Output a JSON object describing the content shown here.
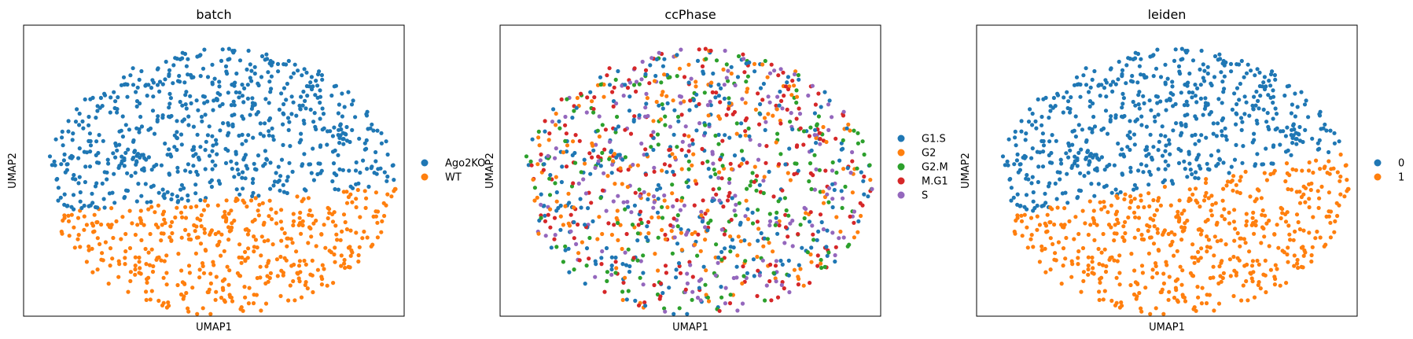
{
  "figure": {
    "background": "#ffffff"
  },
  "chart_data": [
    {
      "type": "scatter",
      "title": "batch",
      "xlabel": "UMAP1",
      "ylabel": "UMAP2",
      "xticks": [],
      "yticks": [],
      "grid": false,
      "legend_placement": "right",
      "categories": [
        {
          "name": "Ago2KO",
          "color": "#1f77b4"
        },
        {
          "name": "WT",
          "color": "#ff7f0e"
        }
      ],
      "points_description": "UMAP embedding, ~1200 cells; Ago2KO in upper half, WT in lower half",
      "seed": 11
    },
    {
      "type": "scatter",
      "title": "ccPhase",
      "xlabel": "UMAP1",
      "ylabel": "UMAP2",
      "xticks": [],
      "yticks": [],
      "grid": false,
      "legend_placement": "right",
      "categories": [
        {
          "name": "G1.S",
          "color": "#1f77b4"
        },
        {
          "name": "G2",
          "color": "#ff7f0e"
        },
        {
          "name": "G2.M",
          "color": "#2ca02c"
        },
        {
          "name": "M.G1",
          "color": "#d62728"
        },
        {
          "name": "S",
          "color": "#9467bd"
        }
      ],
      "points_description": "Same embedding; phases intermixed throughout",
      "seed": 23
    },
    {
      "type": "scatter",
      "title": "leiden",
      "xlabel": "UMAP1",
      "ylabel": "UMAP2",
      "xticks": [],
      "yticks": [],
      "grid": false,
      "legend_placement": "right",
      "categories": [
        {
          "name": "0",
          "color": "#1f77b4"
        },
        {
          "name": "1",
          "color": "#ff7f0e"
        }
      ],
      "points_description": "Same embedding; cluster 0 upper-left, cluster 1 lower-right",
      "seed": 37
    }
  ]
}
